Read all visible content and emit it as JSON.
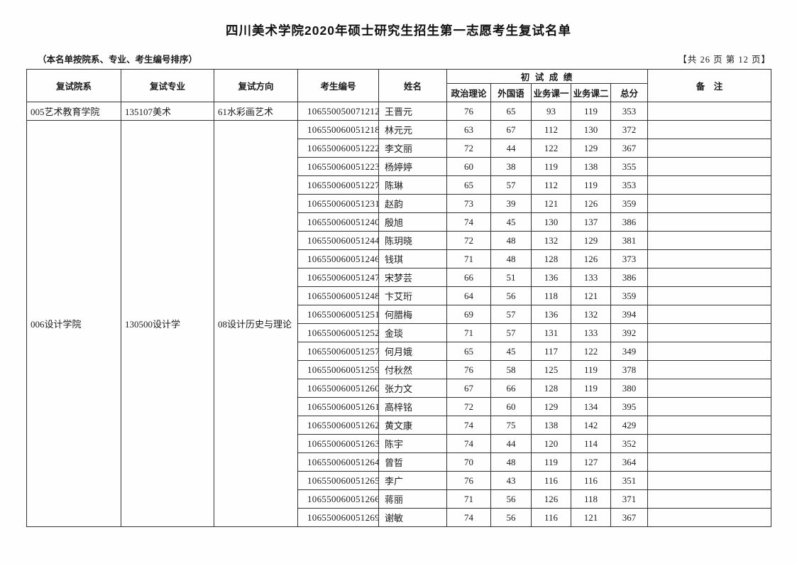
{
  "page": {
    "title": "四川美术学院2020年硕士研究生招生第一志愿考生复试名单",
    "subtitle": "（本名单按院系、专业、考生编号排序）",
    "page_info": "【共 26 页 第 12 页】"
  },
  "table": {
    "headers": {
      "dept": "复试院系",
      "major": "复试专业",
      "direction": "复试方向",
      "candidate_no": "考生编号",
      "name": "姓名",
      "initial_scores": "初 试 成 绩",
      "politics": "政治理论",
      "foreign": "外国语",
      "course1": "业务课一",
      "course2": "业务课二",
      "total": "总分",
      "remarks": "备　注"
    },
    "groups": [
      {
        "dept": "005艺术教育学院",
        "major": "135107美术",
        "direction": "61水彩画艺术",
        "rows": [
          {
            "no": "106550050071212",
            "name": "王晋元",
            "scores": [
              76,
              65,
              93,
              119,
              353
            ],
            "remarks": ""
          }
        ]
      },
      {
        "dept": "006设计学院",
        "major": "130500设计学",
        "direction": "08设计历史与理论",
        "rows": [
          {
            "no": "106550060051218",
            "name": "林元元",
            "scores": [
              63,
              67,
              112,
              130,
              372
            ],
            "remarks": ""
          },
          {
            "no": "106550060051222",
            "name": "李文丽",
            "scores": [
              72,
              44,
              122,
              129,
              367
            ],
            "remarks": ""
          },
          {
            "no": "106550060051223",
            "name": "杨婷婷",
            "scores": [
              60,
              38,
              119,
              138,
              355
            ],
            "remarks": ""
          },
          {
            "no": "106550060051227",
            "name": "陈琳",
            "scores": [
              65,
              57,
              112,
              119,
              353
            ],
            "remarks": ""
          },
          {
            "no": "106550060051231",
            "name": "赵韵",
            "scores": [
              73,
              39,
              121,
              126,
              359
            ],
            "remarks": ""
          },
          {
            "no": "106550060051240",
            "name": "殷旭",
            "scores": [
              74,
              45,
              130,
              137,
              386
            ],
            "remarks": ""
          },
          {
            "no": "106550060051244",
            "name": "陈玥晓",
            "scores": [
              72,
              48,
              132,
              129,
              381
            ],
            "remarks": ""
          },
          {
            "no": "106550060051246",
            "name": "钱琪",
            "scores": [
              71,
              48,
              128,
              126,
              373
            ],
            "remarks": ""
          },
          {
            "no": "106550060051247",
            "name": "宋梦芸",
            "scores": [
              66,
              51,
              136,
              133,
              386
            ],
            "remarks": ""
          },
          {
            "no": "106550060051248",
            "name": "卞艾珩",
            "scores": [
              64,
              56,
              118,
              121,
              359
            ],
            "remarks": ""
          },
          {
            "no": "106550060051251",
            "name": "何腊梅",
            "scores": [
              69,
              57,
              136,
              132,
              394
            ],
            "remarks": ""
          },
          {
            "no": "106550060051252",
            "name": "金琰",
            "scores": [
              71,
              57,
              131,
              133,
              392
            ],
            "remarks": ""
          },
          {
            "no": "106550060051257",
            "name": "何月娥",
            "scores": [
              65,
              45,
              117,
              122,
              349
            ],
            "remarks": ""
          },
          {
            "no": "106550060051259",
            "name": "付秋然",
            "scores": [
              76,
              58,
              125,
              119,
              378
            ],
            "remarks": ""
          },
          {
            "no": "106550060051260",
            "name": "张力文",
            "scores": [
              67,
              66,
              128,
              119,
              380
            ],
            "remarks": ""
          },
          {
            "no": "106550060051261",
            "name": "高梓铭",
            "scores": [
              72,
              60,
              129,
              134,
              395
            ],
            "remarks": ""
          },
          {
            "no": "106550060051262",
            "name": "黄文康",
            "scores": [
              74,
              75,
              138,
              142,
              429
            ],
            "remarks": ""
          },
          {
            "no": "106550060051263",
            "name": "陈宇",
            "scores": [
              74,
              44,
              120,
              114,
              352
            ],
            "remarks": ""
          },
          {
            "no": "106550060051264",
            "name": "曾晢",
            "scores": [
              70,
              48,
              119,
              127,
              364
            ],
            "remarks": ""
          },
          {
            "no": "106550060051265",
            "name": "李广",
            "scores": [
              76,
              43,
              116,
              116,
              351
            ],
            "remarks": ""
          },
          {
            "no": "106550060051266",
            "name": "蒋丽",
            "scores": [
              71,
              56,
              126,
              118,
              371
            ],
            "remarks": ""
          },
          {
            "no": "106550060051269",
            "name": "谢敏",
            "scores": [
              74,
              56,
              116,
              121,
              367
            ],
            "remarks": ""
          }
        ]
      }
    ]
  }
}
